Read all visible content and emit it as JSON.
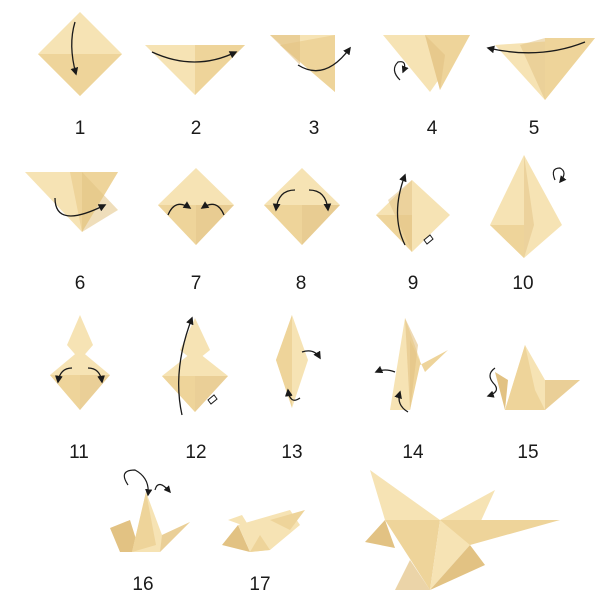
{
  "steps": [
    {
      "label": "1"
    },
    {
      "label": "2"
    },
    {
      "label": "3"
    },
    {
      "label": "4"
    },
    {
      "label": "5"
    },
    {
      "label": "6"
    },
    {
      "label": "7"
    },
    {
      "label": "8"
    },
    {
      "label": "9"
    },
    {
      "label": "10"
    },
    {
      "label": "11"
    },
    {
      "label": "12"
    },
    {
      "label": "13"
    },
    {
      "label": "14"
    },
    {
      "label": "15"
    },
    {
      "label": "16"
    },
    {
      "label": "17"
    }
  ],
  "colors": {
    "paper_light": "#f6e3b4",
    "paper_mid": "#eed49a",
    "paper_dark": "#e2c283",
    "arrow": "#1a1a1a",
    "label": "#1a1a1a"
  }
}
